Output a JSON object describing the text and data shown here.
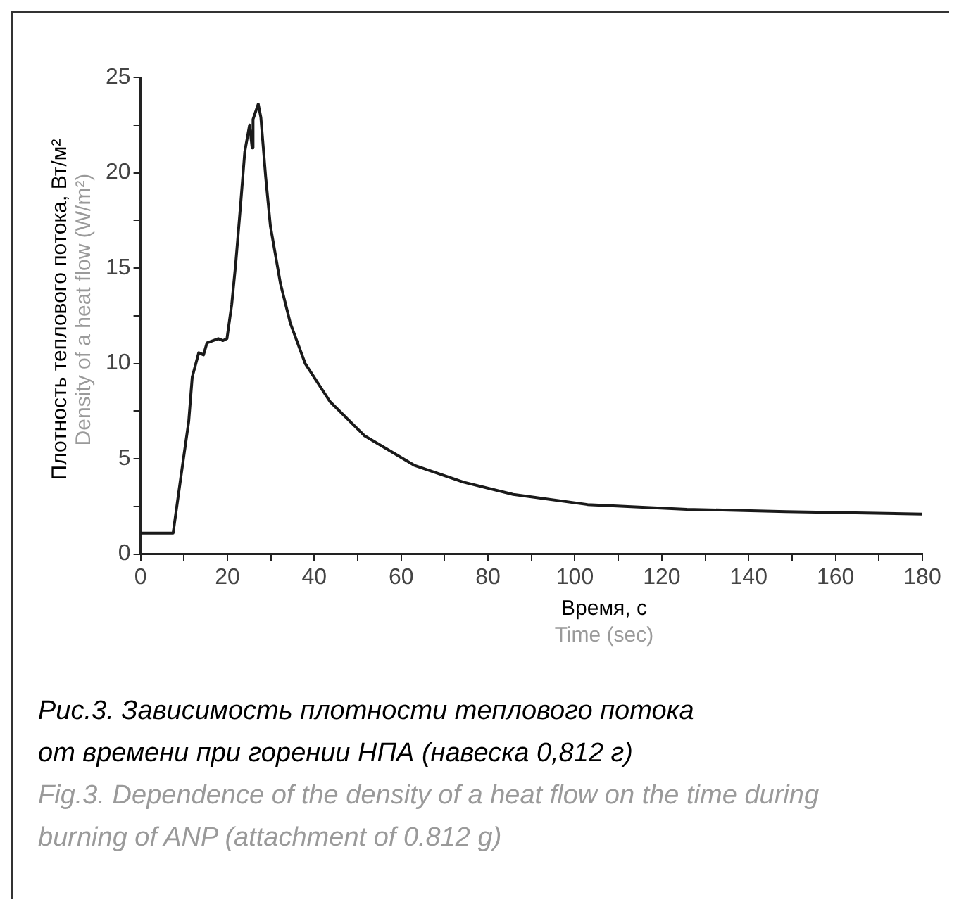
{
  "chart_data": {
    "type": "line",
    "xlabel": "Время, с\nTime (sec)",
    "ylabel": "Плотность теплового потока, Вт/м²\nDensity of a heat flow (W/m²)",
    "series": [
      {
        "color": "#1a1a1a",
        "x": [
          0,
          7.5,
          9.35,
          11.1,
          11.9,
          13.4,
          14.5,
          15.3,
          17.9,
          19.0,
          19.9,
          21.0,
          21.9,
          23.1,
          24.0,
          25.1,
          25.7,
          25.9,
          27.1,
          27.7,
          28.8,
          29.9,
          32.2,
          34.5,
          37.9,
          43.6,
          51.6,
          63.0,
          74.4,
          85.8,
          102.9,
          125.7,
          148.6,
          180
        ],
        "values": [
          1.1,
          1.1,
          4.15,
          6.97,
          9.28,
          10.56,
          10.45,
          11.08,
          11.3,
          11.2,
          11.3,
          13.1,
          15.2,
          18.5,
          21.1,
          22.5,
          21.3,
          22.8,
          23.6,
          22.9,
          19.8,
          17.2,
          14.2,
          12.1,
          10.0,
          8.0,
          6.2,
          4.66,
          3.77,
          3.13,
          2.6,
          2.35,
          2.23,
          2.1
        ]
      }
    ],
    "xlim": [
      0,
      180
    ],
    "xticks": [
      0,
      {
        "value": 10,
        "label": null
      },
      20,
      {
        "value": 30,
        "label": null
      },
      40,
      {
        "value": 50,
        "label": null
      },
      60,
      {
        "value": 70,
        "label": null
      },
      80,
      {
        "value": 90,
        "label": null
      },
      100,
      {
        "value": 110,
        "label": null
      },
      120,
      {
        "value": 130,
        "label": null
      },
      140,
      {
        "value": 150,
        "label": null
      },
      160,
      {
        "value": 170,
        "label": null
      },
      180
    ],
    "ylim": [
      0,
      25
    ],
    "yticks": [
      0,
      {
        "value": 2.5,
        "label": null
      },
      5,
      {
        "value": 7.5,
        "label": null
      },
      10,
      {
        "value": 12.5,
        "label": null
      },
      15,
      {
        "value": 17.5,
        "label": null
      },
      20,
      {
        "value": 22.5,
        "label": null
      },
      25
    ],
    "grid": false,
    "legend": false,
    "marker": "none",
    "line_style": "solid",
    "annotations": [
      "Рис.3. Зависимость плотности теплового потока от времени при горении НПА (навеска 0,812 г)",
      "Fig.3. Dependence of the density of a heat flow on the time during burning of ANP (attachment of 0.812 g)"
    ]
  }
}
